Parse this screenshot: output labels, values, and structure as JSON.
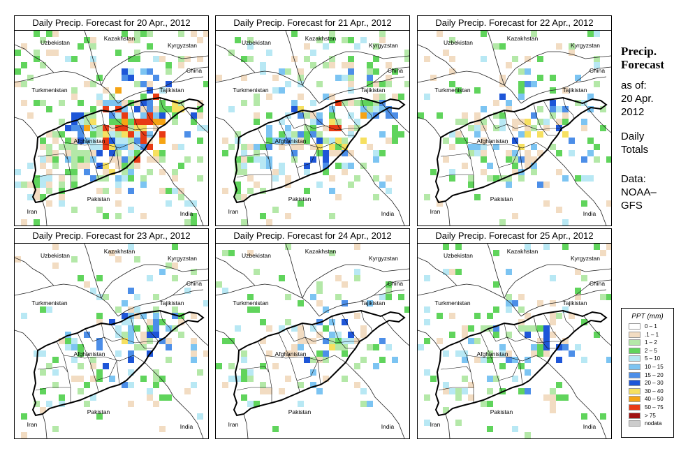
{
  "panels": [
    {
      "title": "Daily Precip. Forecast for  20 Apr., 2012",
      "seed": 11,
      "intensity": 1.0
    },
    {
      "title": "Daily Precip. Forecast for  21 Apr., 2012",
      "seed": 23,
      "intensity": 0.7
    },
    {
      "title": "Daily Precip. Forecast for  22 Apr., 2012",
      "seed": 37,
      "intensity": 0.55
    },
    {
      "title": "Daily Precip. Forecast for  23 Apr., 2012",
      "seed": 41,
      "intensity": 0.45
    },
    {
      "title": "Daily Precip. Forecast for  24 Apr., 2012",
      "seed": 53,
      "intensity": 0.4
    },
    {
      "title": "Daily Precip. Forecast for  25 Apr., 2012",
      "seed": 67,
      "intensity": 0.35
    }
  ],
  "country_labels": {
    "uzbekistan": "Uzbekistan",
    "kazakhstan": "Kazakhstan",
    "kyrgyzstan": "Kyrgyzstan",
    "china": "China",
    "turkmenistan": "Turkmenistan",
    "tajikistan": "Tajikistan",
    "afghanistan": "Afghanistan",
    "pakistan": "Pakistan",
    "iran": "Iran",
    "india": "India"
  },
  "sidebar": {
    "title_line1": "Precip.",
    "title_line2": "Forecast",
    "asof_line1": "as of:",
    "asof_line2": "20 Apr.",
    "asof_line3": "2012",
    "totals_line1": "Daily",
    "totals_line2": "Totals",
    "data_line1": "Data:",
    "data_line2": "NOAA–",
    "data_line3": "GFS"
  },
  "legend": {
    "title": "PPT (mm)",
    "items": [
      {
        "label": "0 – 1",
        "color": "#ffffff"
      },
      {
        "label": ".1 – 1",
        "color": "#f2dcc2"
      },
      {
        "label": "1 – 2",
        "color": "#b4e8a8"
      },
      {
        "label": "2 – 5",
        "color": "#60d45c"
      },
      {
        "label": "5 – 10",
        "color": "#b8e8f4"
      },
      {
        "label": "10 – 15",
        "color": "#7cc4f2"
      },
      {
        "label": "15 – 20",
        "color": "#4c8ee8"
      },
      {
        "label": "20 – 30",
        "color": "#1e56d8"
      },
      {
        "label": "30 – 40",
        "color": "#f6e060"
      },
      {
        "label": "40 – 50",
        "color": "#f6a414"
      },
      {
        "label": "50 – 75",
        "color": "#e83a14"
      },
      {
        "label": "> 75",
        "color": "#a01010"
      },
      {
        "label": "nodata",
        "color": "#cccccc"
      }
    ]
  }
}
